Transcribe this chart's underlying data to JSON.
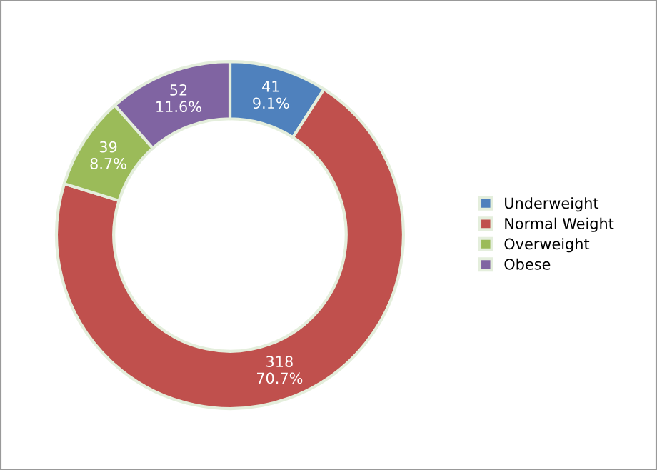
{
  "chart_data": {
    "type": "donut",
    "categories": [
      "Underweight",
      "Normal Weight",
      "Overweight",
      "Obese"
    ],
    "values": [
      41,
      318,
      39,
      52
    ],
    "colors": [
      "#4f81bd",
      "#c0504d",
      "#9bbb59",
      "#8064a2"
    ],
    "value_labels": [
      "41\n9.1%",
      "318\n70.7%",
      "39\n8.7%",
      "52\n11.6%"
    ],
    "legend": "right"
  }
}
